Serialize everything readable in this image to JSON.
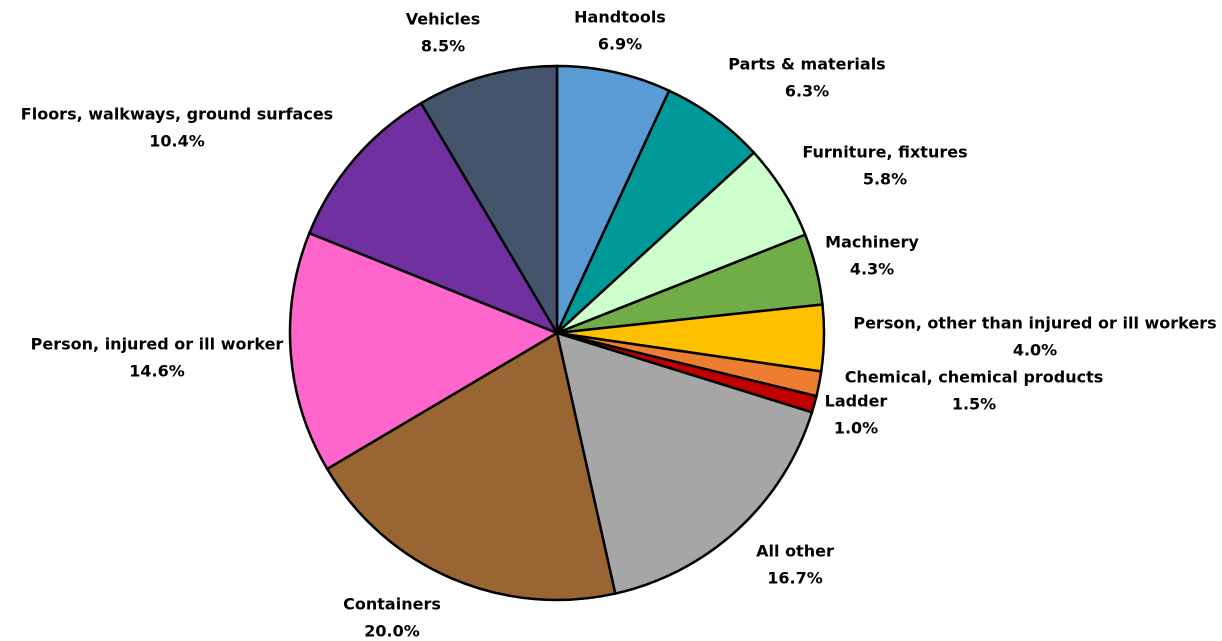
{
  "chart_data": {
    "type": "pie",
    "categories": [
      "Handtools",
      "Parts & materials",
      "Furniture, fixtures",
      "Machinery",
      "Person, other than injured or ill workers",
      "Chemical, chemical products",
      "Ladder",
      "All other",
      "Containers",
      "Person, injured or ill worker",
      "Floors, walkways, ground surfaces",
      "Vehicles"
    ],
    "values": [
      6.9,
      6.3,
      5.8,
      4.3,
      4.0,
      1.5,
      1.0,
      16.7,
      20.0,
      14.6,
      10.4,
      8.5
    ],
    "value_labels": [
      "6.9%",
      "6.3%",
      "5.8%",
      "4.3%",
      "4.0%",
      "1.5%",
      "1.0%",
      "16.7%",
      "20.0%",
      "14.6%",
      "10.4%",
      "8.5%"
    ],
    "colors": [
      "#5b9bd5",
      "#009999",
      "#ccffcc",
      "#70ad47",
      "#ffc000",
      "#ed7d31",
      "#c00000",
      "#a6a6a6",
      "#996633",
      "#ff66cc",
      "#7030a0",
      "#44546a"
    ]
  }
}
